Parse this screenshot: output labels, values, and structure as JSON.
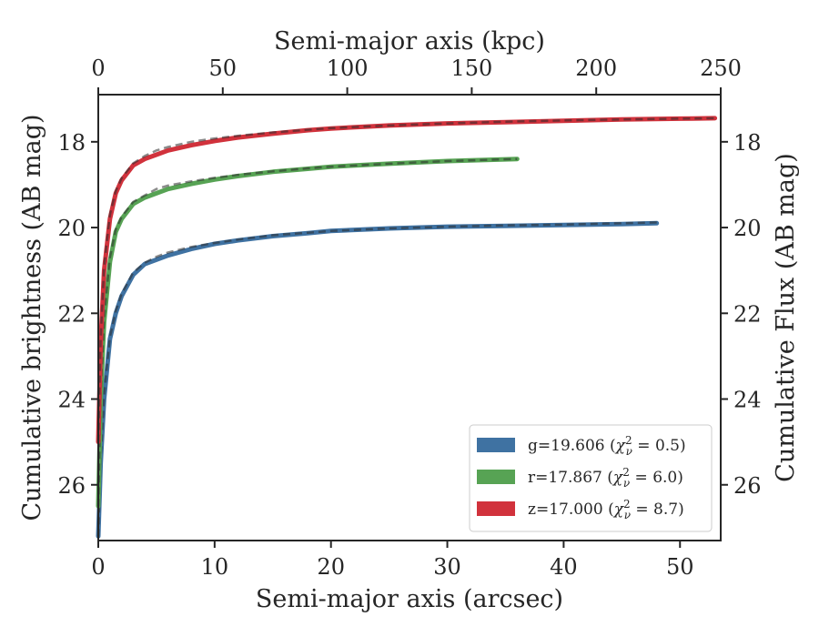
{
  "chart_data": {
    "type": "line",
    "xlabel": "Semi-major axis (arcsec)",
    "ylabel": "Cumulative brightness (AB mag)",
    "x2label": "Semi-major axis (kpc)",
    "y2label": "Cumulative Flux (AB mag)",
    "xlim": [
      0,
      53.5
    ],
    "ylim": [
      27.3,
      16.9
    ],
    "x2lim": [
      0,
      250
    ],
    "y_inverted": true,
    "xticks": [
      "0",
      "10",
      "20",
      "30",
      "40",
      "50"
    ],
    "yticks": [
      "18",
      "20",
      "22",
      "24",
      "26"
    ],
    "x2ticks": [
      "0",
      "50",
      "100",
      "150",
      "200",
      "250"
    ],
    "y2ticks": [
      "18",
      "20",
      "22",
      "24",
      "26"
    ],
    "legend_position": "lower-right",
    "grid": false,
    "series": [
      {
        "name": "g=19.606 (χ²ν = 0.5)",
        "legend_label": "g=19.606 (",
        "legend_chi": "χ",
        "legend_sup": "2",
        "legend_sub": "ν",
        "legend_value": " = 0.5)",
        "color": "#3f72a2",
        "model_color": "#2b2b2b",
        "x": [
          0,
          0.2,
          0.5,
          1,
          1.5,
          2,
          3,
          4,
          5,
          6,
          8,
          10,
          12,
          15,
          18,
          20,
          25,
          30,
          35,
          40,
          45,
          48
        ],
        "y": [
          27.2,
          25.5,
          24.0,
          22.6,
          22.0,
          21.6,
          21.1,
          20.85,
          20.75,
          20.65,
          20.5,
          20.38,
          20.3,
          20.2,
          20.13,
          20.08,
          20.02,
          19.98,
          19.96,
          19.94,
          19.92,
          19.9
        ],
        "model_y": [
          27.2,
          25.4,
          23.9,
          22.55,
          21.95,
          21.55,
          21.05,
          20.82,
          20.68,
          20.58,
          20.45,
          20.36,
          20.28,
          20.18,
          20.12,
          20.08,
          20.02,
          19.98,
          19.95,
          19.93,
          19.9,
          19.88
        ]
      },
      {
        "name": "r=17.867 (χ²ν = 6.0)",
        "legend_label": "r=17.867 (",
        "legend_chi": "χ",
        "legend_sup": "2",
        "legend_sub": "ν",
        "legend_value": " = 6.0)",
        "color": "#57a354",
        "model_color": "#2b2b2b",
        "x": [
          0,
          0.2,
          0.5,
          1,
          1.5,
          2,
          3,
          4,
          5,
          6,
          8,
          10,
          12,
          15,
          18,
          20,
          25,
          30,
          36
        ],
        "y": [
          26.5,
          24.0,
          22.2,
          20.8,
          20.1,
          19.8,
          19.45,
          19.3,
          19.2,
          19.1,
          18.98,
          18.88,
          18.8,
          18.7,
          18.63,
          18.58,
          18.51,
          18.45,
          18.4
        ],
        "model_y": [
          26.5,
          23.9,
          22.1,
          20.7,
          20.05,
          19.75,
          19.4,
          19.25,
          19.1,
          19.02,
          18.92,
          18.84,
          18.77,
          18.69,
          18.62,
          18.58,
          18.51,
          18.45,
          18.4
        ]
      },
      {
        "name": "z=17.000 (χ²ν = 8.7)",
        "legend_label": "z=17.000 (",
        "legend_chi": "χ",
        "legend_sup": "2",
        "legend_sub": "ν",
        "legend_value": " = 8.7)",
        "color": "#d1323c",
        "model_color": "#2b2b2b",
        "x": [
          0,
          0.2,
          0.5,
          1,
          1.5,
          2,
          3,
          4,
          5,
          6,
          8,
          10,
          12,
          15,
          18,
          20,
          25,
          30,
          35,
          40,
          45,
          50,
          53
        ],
        "y": [
          25.0,
          22.7,
          21.0,
          19.8,
          19.2,
          18.9,
          18.55,
          18.4,
          18.3,
          18.2,
          18.08,
          17.98,
          17.9,
          17.81,
          17.73,
          17.69,
          17.62,
          17.57,
          17.54,
          17.51,
          17.48,
          17.46,
          17.45
        ],
        "model_y": [
          25.0,
          22.6,
          20.9,
          19.7,
          19.15,
          18.85,
          18.5,
          18.33,
          18.2,
          18.12,
          18.0,
          17.92,
          17.86,
          17.78,
          17.72,
          17.68,
          17.62,
          17.57,
          17.53,
          17.5,
          17.48,
          17.46,
          17.45
        ]
      }
    ]
  }
}
